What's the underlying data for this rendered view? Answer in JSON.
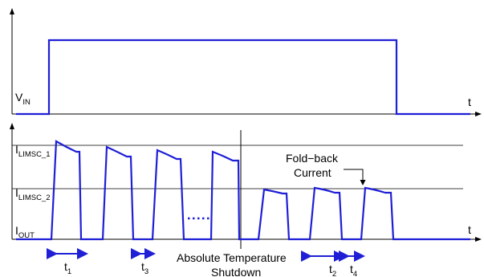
{
  "top_plot": {
    "y_label": "V",
    "y_label_sub": "IN",
    "x_label": "t"
  },
  "bottom_plot": {
    "x_label": "t",
    "level_upper": {
      "text": "I",
      "sub": "LIMSC_1"
    },
    "level_lower": {
      "text": "I",
      "sub": "LIMSC_2"
    },
    "level_out": {
      "text": "I",
      "sub": "OUT"
    }
  },
  "annotations": {
    "foldback_line1": "Fold−back",
    "foldback_line2": "Current",
    "ats_line1": "Absolute Temperature",
    "ats_line2": "Shutdown"
  },
  "time_markers": [
    {
      "text": "t",
      "sub": "1"
    },
    {
      "text": "t",
      "sub": "3"
    },
    {
      "text": "t",
      "sub": "2"
    },
    {
      "text": "t",
      "sub": "4"
    }
  ],
  "colors": {
    "signal": "#1f1fd6",
    "axis": "#000000"
  }
}
